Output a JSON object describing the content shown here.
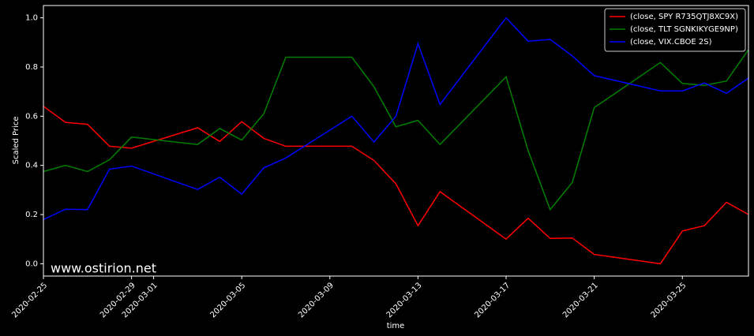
{
  "chart_data": {
    "type": "line",
    "ylabel": "Scaled Price",
    "xlabel": "time",
    "watermark": "www.ostirion.net",
    "x": [
      "2020-02-25",
      "2020-02-26",
      "2020-02-27",
      "2020-02-28",
      "2020-02-29",
      "2020-03-03",
      "2020-03-04",
      "2020-03-05",
      "2020-03-06",
      "2020-03-07",
      "2020-03-10",
      "2020-03-11",
      "2020-03-12",
      "2020-03-13",
      "2020-03-14",
      "2020-03-17",
      "2020-03-18",
      "2020-03-19",
      "2020-03-20",
      "2020-03-21",
      "2020-03-24",
      "2020-03-25",
      "2020-03-26",
      "2020-03-27",
      "2020-03-28"
    ],
    "series": [
      {
        "name": "(close, SPY R735QTJ8XC9X)",
        "color": "#ff0000",
        "values": [
          0.64,
          0.575,
          0.567,
          0.478,
          0.47,
          0.553,
          0.497,
          0.578,
          0.51,
          0.478,
          0.478,
          0.42,
          0.325,
          0.155,
          0.293,
          0.1,
          0.185,
          0.103,
          0.105,
          0.038,
          0.0,
          0.133,
          0.155,
          0.25,
          0.2
        ]
      },
      {
        "name": "(close, TLT SGNKIKYGE9NP)",
        "color": "#008000",
        "values": [
          0.375,
          0.4,
          0.375,
          0.423,
          0.515,
          0.485,
          0.55,
          0.503,
          0.61,
          0.84,
          0.84,
          0.72,
          0.557,
          0.583,
          0.485,
          0.76,
          0.46,
          0.22,
          0.33,
          0.635,
          0.818,
          0.733,
          0.725,
          0.743,
          0.87
        ]
      },
      {
        "name": "(close, VIX.CBOE 2S)",
        "color": "#0000ff",
        "values": [
          0.18,
          0.222,
          0.22,
          0.385,
          0.397,
          0.302,
          0.352,
          0.283,
          0.39,
          0.43,
          0.6,
          0.495,
          0.6,
          0.895,
          0.648,
          1.0,
          0.905,
          0.912,
          0.845,
          0.765,
          0.703,
          0.703,
          0.735,
          0.693,
          0.755
        ]
      }
    ],
    "xlim": [
      "2020-02-25",
      "2020-03-28"
    ],
    "xticks": [
      "2020-02-25",
      "2020-02-29",
      "2020-03-01",
      "2020-03-05",
      "2020-03-09",
      "2020-03-13",
      "2020-03-17",
      "2020-03-21",
      "2020-03-25"
    ],
    "ylim": [
      -0.05,
      1.05
    ],
    "yticks": [
      {
        "value": 0,
        "label": "0.0"
      },
      {
        "value": 0.2,
        "label": "0.2"
      },
      {
        "value": 0.4,
        "label": "0.4"
      },
      {
        "value": 0.6,
        "label": "0.6"
      },
      {
        "value": 0.8,
        "label": "0.8"
      },
      {
        "value": 1,
        "label": "1.0"
      }
    ],
    "legend": "upper right",
    "grid": false
  }
}
